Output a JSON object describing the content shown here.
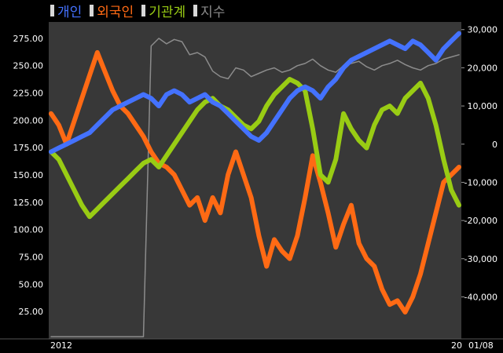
{
  "chart_data": {
    "type": "line",
    "legend": [
      {
        "name": "개인",
        "color": "#4472ff"
      },
      {
        "name": "외국인",
        "color": "#ff6a14"
      },
      {
        "name": "기관계",
        "color": "#99cc14"
      },
      {
        "name": "지수",
        "color": "#8c8c8c"
      }
    ],
    "left_axis": {
      "ticks": [
        "275.00",
        "250.00",
        "225.00",
        "200.00",
        "175.00",
        "150.00",
        "125.00",
        "100.00",
        "75.00",
        "50.00",
        "25.00"
      ],
      "ylim": [
        0,
        290
      ]
    },
    "right_axis": {
      "ticks": [
        "30,000",
        "20,000",
        "10,000",
        "0",
        "-10,000",
        "-20,000",
        "-30,000",
        "-40,000"
      ],
      "ylim": [
        -51000,
        32000
      ]
    },
    "x_labels": [
      "2012",
      "20",
      "01/08"
    ],
    "series": [
      {
        "name": "개인",
        "color": "#4472ff",
        "axis": "right",
        "values": [
          -2000,
          -1000,
          0,
          1000,
          2000,
          3000,
          5000,
          7000,
          9000,
          10000,
          11000,
          12000,
          13000,
          12000,
          10000,
          13000,
          14000,
          13000,
          11000,
          12000,
          13000,
          11000,
          10000,
          8000,
          6000,
          4000,
          2000,
          1000,
          3000,
          6000,
          9000,
          12000,
          14000,
          15000,
          14000,
          12000,
          15000,
          17000,
          20000,
          22000,
          23000,
          24000,
          25000,
          26000,
          27000,
          26000,
          25000,
          27000,
          26000,
          24000,
          22000,
          25000,
          27000,
          29000
        ]
      },
      {
        "name": "외국인",
        "color": "#ff6a14",
        "axis": "right",
        "values": [
          8000,
          5000,
          0,
          6000,
          12000,
          18000,
          24000,
          19000,
          14000,
          10000,
          8000,
          5000,
          2000,
          -2000,
          -5000,
          -6000,
          -8000,
          -12000,
          -16000,
          -14000,
          -20000,
          -14000,
          -18000,
          -8000,
          -2000,
          -8000,
          -14000,
          -24000,
          -32000,
          -25000,
          -28000,
          -30000,
          -24000,
          -14000,
          -3000,
          -10000,
          -18000,
          -27000,
          -21000,
          -16000,
          -26000,
          -30000,
          -32000,
          -38000,
          -42000,
          -41000,
          -44000,
          -40000,
          -34000,
          -26000,
          -18000,
          -10000,
          -8000,
          -6000
        ]
      },
      {
        "name": "기관계",
        "color": "#99cc14",
        "axis": "right",
        "values": [
          -2000,
          -4000,
          -8000,
          -12000,
          -16000,
          -19000,
          -17000,
          -15000,
          -13000,
          -11000,
          -9000,
          -7000,
          -5000,
          -4000,
          -6000,
          -3000,
          0,
          3000,
          6000,
          9000,
          11000,
          12000,
          10000,
          9000,
          7000,
          5000,
          4000,
          6000,
          10000,
          13000,
          15000,
          17000,
          16000,
          14000,
          4000,
          -8000,
          -10000,
          -4000,
          8000,
          4000,
          1000,
          -1000,
          5000,
          9000,
          10000,
          8000,
          12000,
          14000,
          16000,
          12000,
          5000,
          -4000,
          -12000,
          -16000
        ]
      },
      {
        "name": "지수",
        "color": "#8c8c8c",
        "axis": "left",
        "values": [
          2,
          2,
          2,
          2,
          2,
          2,
          2,
          2,
          2,
          2,
          2,
          2,
          2,
          268,
          275,
          270,
          274,
          272,
          260,
          262,
          258,
          245,
          240,
          238,
          248,
          246,
          240,
          243,
          246,
          248,
          244,
          246,
          250,
          252,
          256,
          250,
          246,
          244,
          250,
          252,
          254,
          249,
          246,
          250,
          252,
          255,
          251,
          248,
          246,
          250,
          252,
          256,
          258,
          260
        ]
      }
    ]
  }
}
